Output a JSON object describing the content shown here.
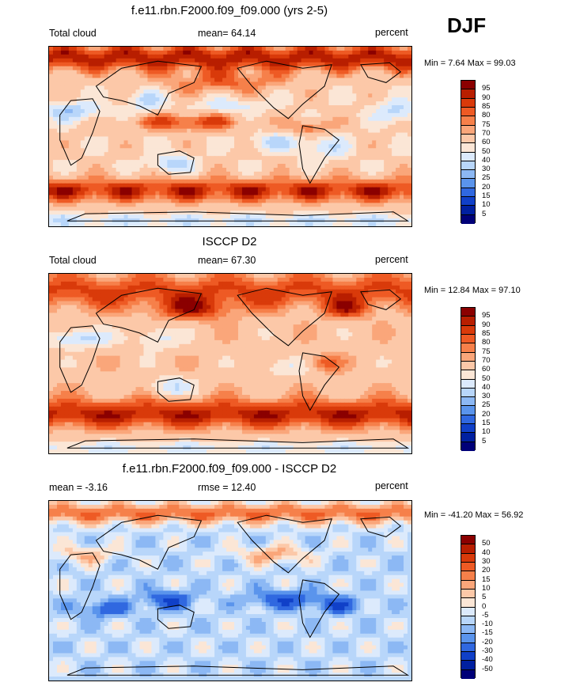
{
  "season": "DJF",
  "chart_data": [
    {
      "type": "heatmap",
      "title": "f.e11.rbn.F2000.f09_f09.000 (yrs 2-5)",
      "left_label": "Total cloud",
      "center_label": "mean=  64.14",
      "right_label": "percent",
      "minmax": "Min =   7.64 Max =  99.03",
      "colorbar_ticks": [
        "95",
        "90",
        "85",
        "80",
        "75",
        "70",
        "60",
        "50",
        "40",
        "30",
        "25",
        "20",
        "15",
        "10",
        "5"
      ],
      "colorbar_colors": [
        "#8b0000",
        "#b81e00",
        "#d93a0a",
        "#ee5a24",
        "#f6804a",
        "#faa67a",
        "#fcc8a8",
        "#fbe6d6",
        "#dceafc",
        "#b8d6fa",
        "#8cb8f4",
        "#5a94ec",
        "#3068e0",
        "#1040c8",
        "#0020a0",
        "#000078"
      ],
      "field": "model"
    },
    {
      "type": "heatmap",
      "title": "ISCCP D2",
      "left_label": "Total cloud",
      "center_label": "mean=  67.30",
      "right_label": "percent",
      "minmax": "Min =  12.84 Max =  97.10",
      "colorbar_ticks": [
        "95",
        "90",
        "85",
        "80",
        "75",
        "70",
        "60",
        "50",
        "40",
        "30",
        "25",
        "20",
        "15",
        "10",
        "5"
      ],
      "colorbar_colors": [
        "#8b0000",
        "#b81e00",
        "#d93a0a",
        "#ee5a24",
        "#f6804a",
        "#faa67a",
        "#fcc8a8",
        "#fbe6d6",
        "#dceafc",
        "#b8d6fa",
        "#8cb8f4",
        "#5a94ec",
        "#3068e0",
        "#1040c8",
        "#0020a0",
        "#000078"
      ],
      "field": "obs"
    },
    {
      "type": "heatmap",
      "title": "f.e11.rbn.F2000.f09_f09.000 - ISCCP D2",
      "left_label": "mean =  -3.16",
      "center_label": "rmse =  12.40",
      "right_label": "percent",
      "minmax": "Min = -41.20 Max =  56.92",
      "colorbar_ticks": [
        "50",
        "40",
        "30",
        "20",
        "15",
        "10",
        "5",
        "0",
        "-5",
        "-10",
        "-15",
        "-20",
        "-30",
        "-40",
        "-50"
      ],
      "colorbar_colors": [
        "#8b0000",
        "#b81e00",
        "#d93a0a",
        "#ee5a24",
        "#f6804a",
        "#faa67a",
        "#fcc8a8",
        "#fbe6d6",
        "#dceafc",
        "#b8d6fa",
        "#8cb8f4",
        "#5a94ec",
        "#3068e0",
        "#1040c8",
        "#0020a0",
        "#000078"
      ],
      "field": "diff"
    }
  ]
}
